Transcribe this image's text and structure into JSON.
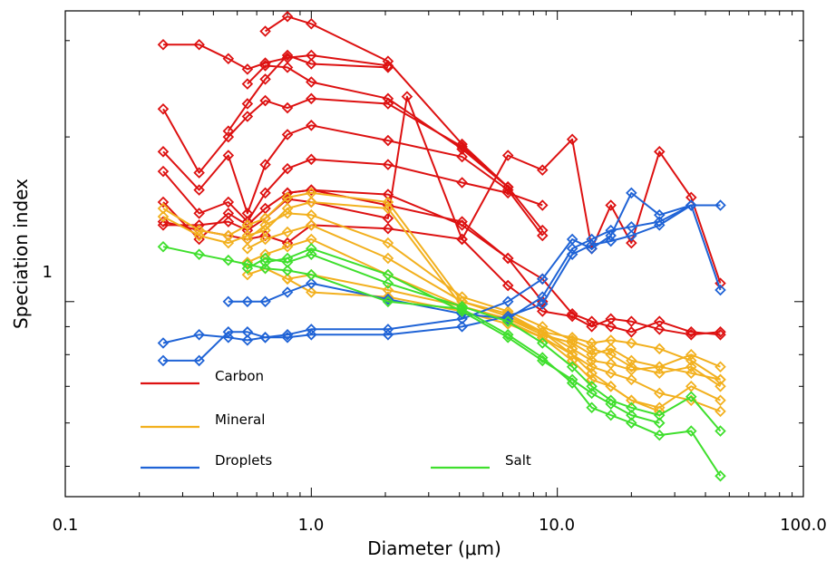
{
  "chart_data": {
    "type": "line",
    "xlabel": "Diameter (μm)",
    "ylabel": "Speciation index",
    "x_scale": "log",
    "y_scale": "log",
    "xlim": [
      0.1,
      100.0
    ],
    "ylim": [
      0.44,
      3.4
    ],
    "x_tick_labels": [
      "0.1",
      "1.0",
      "10.0",
      "100.0"
    ],
    "y_tick_labels": [
      "1"
    ],
    "grid": false,
    "legend_position": "bottom-left",
    "colors": {
      "Carbon": "#dd1111",
      "Mineral": "#f2b01e",
      "Droplets": "#1f63d6",
      "Salt": "#3fdf2d"
    },
    "series": [
      {
        "name": "Carbon",
        "x": [
          0.25,
          0.35,
          0.46,
          0.55,
          0.65,
          0.8,
          1.0,
          2.05
        ],
        "y": [
          2.95,
          2.95,
          2.78,
          2.66,
          2.73,
          2.79,
          2.82,
          2.7
        ]
      },
      {
        "name": "",
        "group": "Carbon",
        "x": [
          0.46,
          0.55,
          0.65,
          0.8,
          1.0,
          2.05
        ],
        "y": [
          2.05,
          2.3,
          2.55,
          2.82,
          2.72,
          2.68
        ]
      },
      {
        "name": "",
        "group": "Carbon",
        "x": [
          0.55,
          0.65,
          0.8,
          1.0,
          2.05,
          4.1,
          6.3,
          8.7
        ],
        "y": [
          2.5,
          2.7,
          2.68,
          2.52,
          2.35,
          1.9,
          1.62,
          1.35
        ]
      },
      {
        "name": "",
        "group": "Carbon",
        "x": [
          0.65,
          0.8,
          1.0,
          2.05,
          4.1,
          6.3
        ],
        "y": [
          3.12,
          3.32,
          3.22,
          2.75,
          1.94,
          1.62
        ]
      },
      {
        "name": "",
        "group": "Carbon",
        "x": [
          0.25,
          0.35,
          0.46,
          0.55,
          0.65,
          0.8,
          1.0,
          2.05,
          4.1,
          6.3
        ],
        "y": [
          2.25,
          1.72,
          2.0,
          2.18,
          2.33,
          2.26,
          2.35,
          2.3,
          1.92,
          1.62
        ]
      },
      {
        "name": "",
        "group": "Carbon",
        "x": [
          0.25,
          0.35,
          0.46,
          0.55,
          0.65,
          0.8,
          1.0,
          2.05,
          4.1,
          6.3,
          8.7
        ],
        "y": [
          1.88,
          1.6,
          1.85,
          1.45,
          1.78,
          2.02,
          2.1,
          1.97,
          1.84,
          1.6,
          1.32
        ]
      },
      {
        "name": "",
        "group": "Carbon",
        "x": [
          0.25,
          0.35,
          0.46,
          0.55,
          0.65,
          0.8,
          1.0,
          2.05,
          4.1,
          6.3,
          8.7
        ],
        "y": [
          1.73,
          1.45,
          1.52,
          1.4,
          1.58,
          1.75,
          1.82,
          1.78,
          1.65,
          1.58,
          1.5
        ]
      },
      {
        "name": "",
        "group": "Carbon",
        "x": [
          0.25,
          0.35,
          0.46,
          0.55,
          0.65,
          0.8,
          1.0,
          2.05,
          4.1,
          6.3,
          8.7
        ],
        "y": [
          1.52,
          1.3,
          1.45,
          1.38,
          1.48,
          1.58,
          1.6,
          1.57,
          1.38,
          1.2,
          1.0
        ]
      },
      {
        "name": "",
        "group": "Carbon",
        "x": [
          0.25,
          0.35,
          0.46,
          0.55,
          0.65,
          0.8,
          1.0,
          2.05,
          2.45,
          4.1,
          6.3,
          8.7,
          11.5,
          13.8,
          16.5,
          20.0,
          26.0,
          35.0,
          46.0
        ],
        "y": [
          1.38,
          1.38,
          1.4,
          1.35,
          1.42,
          1.54,
          1.52,
          1.42,
          2.37,
          1.3,
          1.07,
          0.96,
          0.94,
          0.9,
          0.93,
          0.92,
          0.89,
          0.87,
          0.88
        ]
      },
      {
        "name": "",
        "group": "Carbon",
        "x": [
          0.25,
          0.35,
          0.46,
          0.55,
          0.65,
          0.8,
          1.0,
          2.05,
          4.1,
          6.3,
          8.7,
          11.5,
          13.8,
          16.5,
          20.0,
          26.0,
          35.0,
          46.0
        ],
        "y": [
          1.4,
          1.35,
          1.32,
          1.3,
          1.32,
          1.28,
          1.38,
          1.36,
          1.3,
          1.85,
          1.74,
          1.98,
          1.25,
          1.5,
          1.28,
          1.88,
          1.55,
          1.08
        ]
      },
      {
        "name": "",
        "group": "Carbon",
        "x": [
          0.8,
          1.0,
          2.05,
          4.1,
          6.3,
          8.7,
          11.5,
          13.8,
          16.5,
          20.0,
          26.0,
          35.0,
          46.0
        ],
        "y": [
          1.58,
          1.6,
          1.5,
          1.4,
          1.2,
          1.1,
          0.95,
          0.92,
          0.9,
          0.88,
          0.92,
          0.88,
          0.87
        ]
      },
      {
        "name": "Mineral",
        "x": [
          0.25,
          0.35,
          0.46,
          0.55,
          0.65,
          0.8,
          1.0,
          2.05,
          4.1,
          6.3,
          8.7,
          11.5,
          13.8,
          16.5,
          20.0,
          26.0,
          35.0,
          46.0
        ],
        "y": [
          1.48,
          1.35,
          1.32,
          1.38,
          1.42,
          1.55,
          1.58,
          1.52,
          1.0,
          0.95,
          0.88,
          0.86,
          0.84,
          0.85,
          0.84,
          0.82,
          0.78,
          0.72
        ]
      },
      {
        "name": "",
        "group": "Mineral",
        "x": [
          0.25,
          0.35,
          0.46,
          0.55,
          0.65,
          0.8,
          1.0,
          2.05,
          4.1,
          6.3,
          8.7,
          11.5,
          13.8,
          16.5,
          20.0,
          26.0,
          35.0,
          46.0
        ],
        "y": [
          1.43,
          1.32,
          1.28,
          1.32,
          1.35,
          1.48,
          1.52,
          1.48,
          0.98,
          0.93,
          0.87,
          0.84,
          0.8,
          0.82,
          0.78,
          0.76,
          0.8,
          0.76
        ]
      },
      {
        "name": "",
        "group": "Mineral",
        "x": [
          0.55,
          0.65,
          0.8,
          1.0,
          2.05,
          4.1,
          6.3,
          8.7,
          11.5,
          13.8,
          16.5,
          20.0,
          26.0,
          35.0,
          46.0
        ],
        "y": [
          1.3,
          1.38,
          1.45,
          1.44,
          1.28,
          1.02,
          0.96,
          0.9,
          0.85,
          0.82,
          0.8,
          0.76,
          0.74,
          0.76,
          0.7
        ]
      },
      {
        "name": "",
        "group": "Mineral",
        "x": [
          0.55,
          0.65,
          0.8,
          1.0,
          2.05,
          4.1,
          6.3,
          8.7,
          11.5,
          13.8,
          16.5,
          20.0,
          26.0,
          35.0,
          46.0
        ],
        "y": [
          1.25,
          1.3,
          1.34,
          1.38,
          1.2,
          1.0,
          0.94,
          0.88,
          0.82,
          0.78,
          0.77,
          0.75,
          0.76,
          0.74,
          0.72
        ]
      },
      {
        "name": "",
        "group": "Mineral",
        "x": [
          0.55,
          0.65,
          0.8,
          1.0,
          2.05,
          4.1,
          6.3,
          8.7,
          11.5,
          13.8,
          16.5,
          20.0,
          26.0,
          35.0,
          46.0
        ],
        "y": [
          1.18,
          1.22,
          1.26,
          1.3,
          1.12,
          0.98,
          0.92,
          0.86,
          0.8,
          0.76,
          0.74,
          0.72,
          0.68,
          0.66,
          0.63
        ]
      },
      {
        "name": "",
        "group": "Mineral",
        "x": [
          0.55,
          0.65,
          0.8,
          1.0,
          2.05,
          4.1,
          6.3,
          8.7,
          11.5,
          13.8,
          16.5,
          20.0,
          26.0,
          35.0,
          46.0
        ],
        "y": [
          1.12,
          1.15,
          1.1,
          1.04,
          1.02,
          0.96,
          0.91,
          0.86,
          0.78,
          0.72,
          0.7,
          0.66,
          0.64,
          0.7,
          0.66
        ]
      },
      {
        "name": "",
        "group": "Mineral",
        "x": [
          0.8,
          1.0,
          2.05,
          4.1,
          6.3,
          8.7,
          11.5,
          13.8,
          16.5,
          20.0,
          26.0
        ],
        "y": [
          1.1,
          1.12,
          1.05,
          0.98,
          0.93,
          0.88,
          0.8,
          0.74,
          0.7,
          0.66,
          0.63
        ]
      },
      {
        "name": "Droplets",
        "x": [
          0.25,
          0.35,
          0.46,
          0.55,
          0.65,
          0.8,
          1.0,
          2.05,
          4.1,
          6.3,
          8.7,
          11.5,
          13.8,
          16.5,
          20.0,
          26.0,
          35.0,
          46.0
        ],
        "y": [
          0.78,
          0.78,
          0.88,
          0.88,
          0.86,
          0.87,
          0.89,
          0.89,
          0.93,
          1.0,
          1.1,
          1.3,
          1.25,
          1.32,
          1.58,
          1.44,
          1.5,
          1.05
        ]
      },
      {
        "name": "",
        "group": "Droplets",
        "x": [
          0.25,
          0.35,
          0.46,
          0.55,
          0.65,
          0.8,
          1.0,
          2.05,
          4.1,
          6.3,
          8.7,
          11.5,
          13.8,
          16.5,
          20.0,
          26.0,
          35.0,
          46.0
        ],
        "y": [
          0.84,
          0.87,
          0.86,
          0.85,
          0.86,
          0.86,
          0.87,
          0.87,
          0.9,
          0.94,
          0.99,
          1.22,
          1.27,
          1.29,
          1.32,
          1.38,
          1.5,
          1.5
        ]
      },
      {
        "name": "",
        "group": "Droplets",
        "x": [
          0.46,
          0.55,
          0.65,
          0.8,
          1.0,
          2.05,
          4.1,
          6.3,
          8.7,
          11.5,
          13.8,
          16.5,
          20.0,
          26.0,
          35.0
        ],
        "y": [
          1.0,
          1.0,
          1.0,
          1.04,
          1.08,
          1.01,
          0.95,
          0.93,
          1.02,
          1.25,
          1.3,
          1.35,
          1.37,
          1.4,
          1.5
        ]
      },
      {
        "name": "Salt",
        "x": [
          0.25,
          0.35,
          0.46,
          0.55,
          0.65,
          0.8,
          1.0,
          2.05,
          4.1,
          6.3,
          8.7,
          11.5,
          13.8,
          16.5,
          20.0,
          26.0,
          35.0,
          46.0
        ],
        "y": [
          1.26,
          1.22,
          1.19,
          1.17,
          1.15,
          1.14,
          1.12,
          1.0,
          0.97,
          0.87,
          0.79,
          0.71,
          0.64,
          0.62,
          0.6,
          0.57,
          0.58,
          0.48
        ]
      },
      {
        "name": "",
        "group": "Salt",
        "x": [
          0.55,
          0.65,
          0.8,
          1.0,
          2.05,
          4.1,
          6.3,
          8.7,
          11.5,
          13.8,
          16.5,
          20.0,
          26.0,
          35.0,
          46.0
        ],
        "y": [
          1.15,
          1.2,
          1.18,
          1.22,
          1.08,
          0.98,
          0.92,
          0.84,
          0.76,
          0.7,
          0.66,
          0.64,
          0.62,
          0.67,
          0.58
        ]
      },
      {
        "name": "",
        "group": "Salt",
        "x": [
          0.65,
          0.8,
          1.0,
          2.05,
          4.1,
          6.3,
          8.7,
          11.5,
          13.8,
          16.5,
          20.0,
          26.0
        ],
        "y": [
          1.18,
          1.2,
          1.25,
          1.12,
          0.96,
          0.86,
          0.78,
          0.72,
          0.68,
          0.65,
          0.62,
          0.6
        ]
      }
    ],
    "legend": [
      {
        "label": "Carbon",
        "color": "#dd1111"
      },
      {
        "label": "Mineral",
        "color": "#f2b01e"
      },
      {
        "label": "Droplets",
        "color": "#1f63d6"
      },
      {
        "label": "Salt",
        "color": "#3fdf2d"
      }
    ]
  }
}
